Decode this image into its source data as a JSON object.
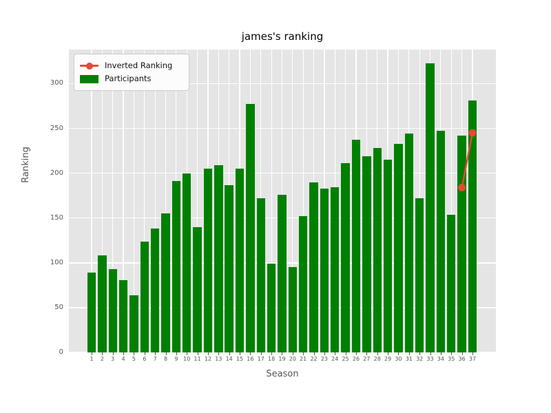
{
  "chart": {
    "title": "james's ranking",
    "xlabel": "Season",
    "ylabel": "Ranking"
  },
  "legend": {
    "items": [
      {
        "label": "Inverted Ranking",
        "type": "line",
        "color": "#E24A33"
      },
      {
        "label": "Participants",
        "type": "patch",
        "color": "#008000"
      }
    ]
  },
  "chart_data": {
    "type": "bar",
    "title": "james's ranking",
    "xlabel": "Season",
    "ylabel": "Ranking",
    "categories": [
      1,
      2,
      3,
      4,
      5,
      6,
      7,
      8,
      9,
      10,
      11,
      12,
      13,
      14,
      15,
      16,
      17,
      18,
      19,
      20,
      21,
      22,
      23,
      24,
      25,
      26,
      27,
      28,
      29,
      30,
      31,
      32,
      33,
      34,
      35,
      36,
      37
    ],
    "series": [
      {
        "name": "Participants",
        "type": "bar",
        "color": "#008000",
        "values": [
          89,
          108,
          93,
          81,
          64,
          124,
          138,
          155,
          191,
          200,
          140,
          205,
          209,
          187,
          205,
          277,
          172,
          99,
          176,
          95,
          152,
          190,
          183,
          184,
          211,
          237,
          219,
          228,
          215,
          233,
          244,
          172,
          323,
          247,
          154,
          242,
          281
        ]
      },
      {
        "name": "Inverted Ranking",
        "type": "line",
        "color": "#E24A33",
        "points": [
          {
            "x": 36,
            "y": 184
          },
          {
            "x": 37,
            "y": 245
          }
        ]
      }
    ],
    "ylim": [
      0,
      338
    ],
    "yticks": [
      0,
      50,
      100,
      150,
      200,
      250,
      300
    ],
    "grid": true,
    "plot_background": "#e5e5e5",
    "grid_color": "#ffffff",
    "legend_position": "upper left"
  }
}
